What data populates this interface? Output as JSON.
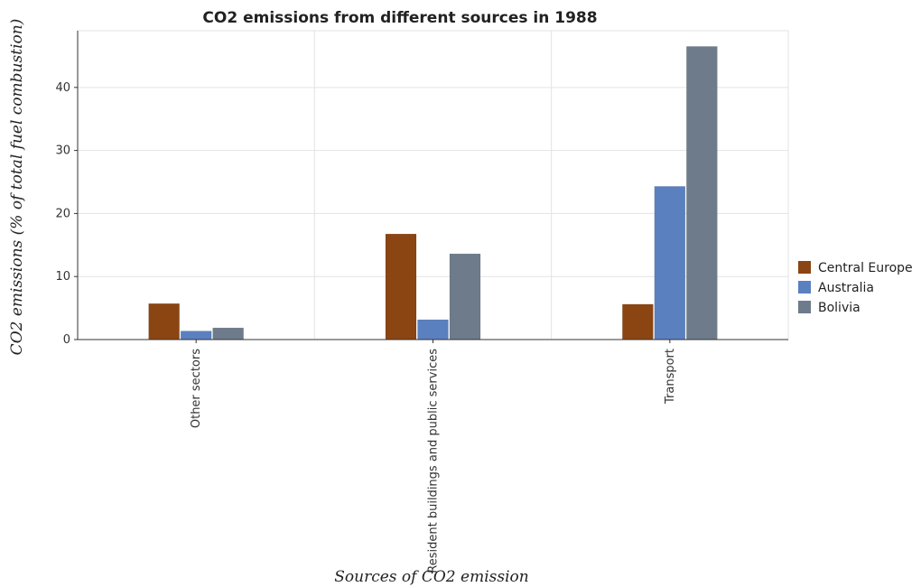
{
  "chart_data": {
    "type": "bar",
    "title": "CO2 emissions from different sources in 1988",
    "xlabel": "Sources of CO2 emission",
    "ylabel": "CO2 emissions (% of total fuel combustion)",
    "categories": [
      "Other sectors",
      "Resident buildings and public services",
      "Transport"
    ],
    "series": [
      {
        "name": "Central Europe",
        "color": "#8B4513",
        "values": [
          5.7,
          16.75,
          5.6
        ]
      },
      {
        "name": "Australia",
        "color": "#5B80C0",
        "values": [
          1.35,
          3.15,
          24.3
        ]
      },
      {
        "name": "Bolivia",
        "color": "#6E7B8B",
        "values": [
          1.85,
          13.6,
          46.5
        ]
      }
    ],
    "ylim": [
      0,
      49
    ],
    "yticks": [
      0,
      10,
      20,
      30,
      40
    ],
    "grid": true,
    "legend_position": "right"
  }
}
